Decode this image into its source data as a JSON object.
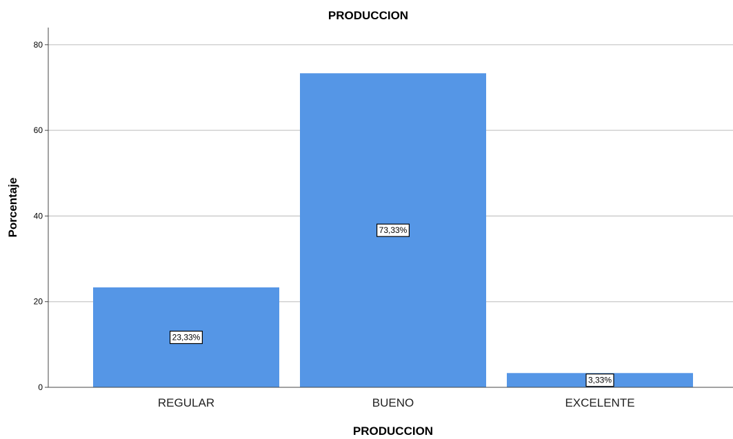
{
  "chart_data": {
    "type": "bar",
    "title": "PRODUCCION",
    "xlabel": "PRODUCCION",
    "ylabel": "Porcentaje",
    "categories": [
      "REGULAR",
      "BUENO",
      "EXCELENTE"
    ],
    "values": [
      23.33,
      73.33,
      3.33
    ],
    "data_labels": [
      "23,33%",
      "73,33%",
      "3,33%"
    ],
    "yticks": [
      "0",
      "20",
      "40",
      "60",
      "80"
    ],
    "ylim": [
      0,
      84
    ],
    "grid": true,
    "colors": {
      "bar": "#5596e6",
      "grid": "#c8c8c8",
      "axis": "#444444"
    }
  }
}
